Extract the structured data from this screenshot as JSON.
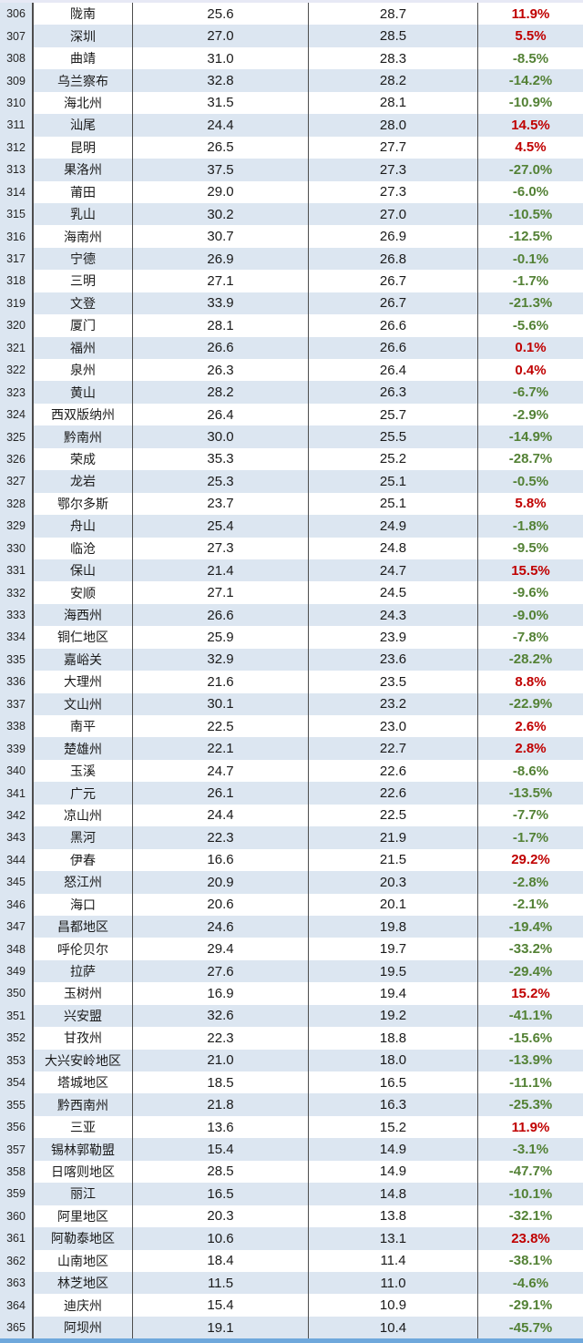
{
  "colors": {
    "positive_change": "#c00000",
    "negative_change": "#538135",
    "stripe": "#dce6f1",
    "rank_column_bg": "#dce6f1",
    "grid_border": "#4d4d4d",
    "top_bar": "#e7e9f5",
    "bottom_bar": "#6fa8dc"
  },
  "chart_data": {
    "type": "table",
    "columns": [
      "rank",
      "city",
      "value_prev",
      "value_current",
      "change_pct"
    ],
    "legend_note": "positive change rendered red, negative change rendered green",
    "rows": [
      [
        "306",
        "陇南",
        "25.6",
        "28.7",
        "11.9%"
      ],
      [
        "307",
        "深圳",
        "27.0",
        "28.5",
        "5.5%"
      ],
      [
        "308",
        "曲靖",
        "31.0",
        "28.3",
        "-8.5%"
      ],
      [
        "309",
        "乌兰察布",
        "32.8",
        "28.2",
        "-14.2%"
      ],
      [
        "310",
        "海北州",
        "31.5",
        "28.1",
        "-10.9%"
      ],
      [
        "311",
        "汕尾",
        "24.4",
        "28.0",
        "14.5%"
      ],
      [
        "312",
        "昆明",
        "26.5",
        "27.7",
        "4.5%"
      ],
      [
        "313",
        "果洛州",
        "37.5",
        "27.3",
        "-27.0%"
      ],
      [
        "314",
        "莆田",
        "29.0",
        "27.3",
        "-6.0%"
      ],
      [
        "315",
        "乳山",
        "30.2",
        "27.0",
        "-10.5%"
      ],
      [
        "316",
        "海南州",
        "30.7",
        "26.9",
        "-12.5%"
      ],
      [
        "317",
        "宁德",
        "26.9",
        "26.8",
        "-0.1%"
      ],
      [
        "318",
        "三明",
        "27.1",
        "26.7",
        "-1.7%"
      ],
      [
        "319",
        "文登",
        "33.9",
        "26.7",
        "-21.3%"
      ],
      [
        "320",
        "厦门",
        "28.1",
        "26.6",
        "-5.6%"
      ],
      [
        "321",
        "福州",
        "26.6",
        "26.6",
        "0.1%"
      ],
      [
        "322",
        "泉州",
        "26.3",
        "26.4",
        "0.4%"
      ],
      [
        "323",
        "黄山",
        "28.2",
        "26.3",
        "-6.7%"
      ],
      [
        "324",
        "西双版纳州",
        "26.4",
        "25.7",
        "-2.9%"
      ],
      [
        "325",
        "黔南州",
        "30.0",
        "25.5",
        "-14.9%"
      ],
      [
        "326",
        "荣成",
        "35.3",
        "25.2",
        "-28.7%"
      ],
      [
        "327",
        "龙岩",
        "25.3",
        "25.1",
        "-0.5%"
      ],
      [
        "328",
        "鄂尔多斯",
        "23.7",
        "25.1",
        "5.8%"
      ],
      [
        "329",
        "舟山",
        "25.4",
        "24.9",
        "-1.8%"
      ],
      [
        "330",
        "临沧",
        "27.3",
        "24.8",
        "-9.5%"
      ],
      [
        "331",
        "保山",
        "21.4",
        "24.7",
        "15.5%"
      ],
      [
        "332",
        "安顺",
        "27.1",
        "24.5",
        "-9.6%"
      ],
      [
        "333",
        "海西州",
        "26.6",
        "24.3",
        "-9.0%"
      ],
      [
        "334",
        "铜仁地区",
        "25.9",
        "23.9",
        "-7.8%"
      ],
      [
        "335",
        "嘉峪关",
        "32.9",
        "23.6",
        "-28.2%"
      ],
      [
        "336",
        "大理州",
        "21.6",
        "23.5",
        "8.8%"
      ],
      [
        "337",
        "文山州",
        "30.1",
        "23.2",
        "-22.9%"
      ],
      [
        "338",
        "南平",
        "22.5",
        "23.0",
        "2.6%"
      ],
      [
        "339",
        "楚雄州",
        "22.1",
        "22.7",
        "2.8%"
      ],
      [
        "340",
        "玉溪",
        "24.7",
        "22.6",
        "-8.6%"
      ],
      [
        "341",
        "广元",
        "26.1",
        "22.6",
        "-13.5%"
      ],
      [
        "342",
        "凉山州",
        "24.4",
        "22.5",
        "-7.7%"
      ],
      [
        "343",
        "黑河",
        "22.3",
        "21.9",
        "-1.7%"
      ],
      [
        "344",
        "伊春",
        "16.6",
        "21.5",
        "29.2%"
      ],
      [
        "345",
        "怒江州",
        "20.9",
        "20.3",
        "-2.8%"
      ],
      [
        "346",
        "海口",
        "20.6",
        "20.1",
        "-2.1%"
      ],
      [
        "347",
        "昌都地区",
        "24.6",
        "19.8",
        "-19.4%"
      ],
      [
        "348",
        "呼伦贝尔",
        "29.4",
        "19.7",
        "-33.2%"
      ],
      [
        "349",
        "拉萨",
        "27.6",
        "19.5",
        "-29.4%"
      ],
      [
        "350",
        "玉树州",
        "16.9",
        "19.4",
        "15.2%"
      ],
      [
        "351",
        "兴安盟",
        "32.6",
        "19.2",
        "-41.1%"
      ],
      [
        "352",
        "甘孜州",
        "22.3",
        "18.8",
        "-15.6%"
      ],
      [
        "353",
        "大兴安岭地区",
        "21.0",
        "18.0",
        "-13.9%"
      ],
      [
        "354",
        "塔城地区",
        "18.5",
        "16.5",
        "-11.1%"
      ],
      [
        "355",
        "黔西南州",
        "21.8",
        "16.3",
        "-25.3%"
      ],
      [
        "356",
        "三亚",
        "13.6",
        "15.2",
        "11.9%"
      ],
      [
        "357",
        "锡林郭勒盟",
        "15.4",
        "14.9",
        "-3.1%"
      ],
      [
        "358",
        "日喀则地区",
        "28.5",
        "14.9",
        "-47.7%"
      ],
      [
        "359",
        "丽江",
        "16.5",
        "14.8",
        "-10.1%"
      ],
      [
        "360",
        "阿里地区",
        "20.3",
        "13.8",
        "-32.1%"
      ],
      [
        "361",
        "阿勒泰地区",
        "10.6",
        "13.1",
        "23.8%"
      ],
      [
        "362",
        "山南地区",
        "18.4",
        "11.4",
        "-38.1%"
      ],
      [
        "363",
        "林芝地区",
        "11.5",
        "11.0",
        "-4.6%"
      ],
      [
        "364",
        "迪庆州",
        "15.4",
        "10.9",
        "-29.1%"
      ],
      [
        "365",
        "阿坝州",
        "19.1",
        "10.4",
        "-45.7%"
      ]
    ]
  }
}
